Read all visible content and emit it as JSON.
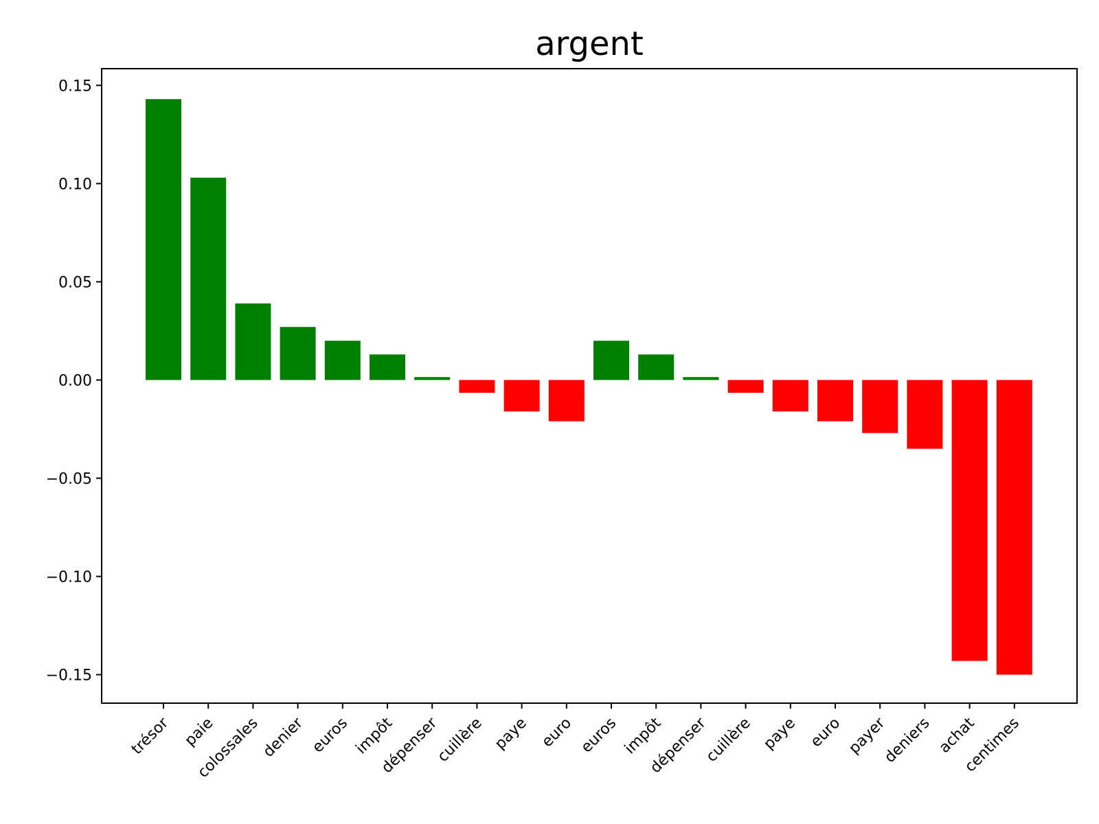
{
  "chart_data": {
    "type": "bar",
    "title": "argent",
    "xlabel": "",
    "ylabel": "",
    "categories": [
      "trésor",
      "paie",
      "colossales",
      "denier",
      "euros",
      "impôt",
      "dépenser",
      "cuillère",
      "paye",
      "euro",
      "euros",
      "impôt",
      "dépenser",
      "cuillère",
      "paye",
      "euro",
      "payer",
      "deniers",
      "achat",
      "centimes"
    ],
    "values": [
      0.143,
      0.103,
      0.039,
      0.027,
      0.02,
      0.013,
      0.0015,
      -0.0065,
      -0.016,
      -0.021,
      0.02,
      0.013,
      0.0015,
      -0.0065,
      -0.016,
      -0.021,
      -0.027,
      -0.035,
      -0.143,
      -0.15
    ],
    "ylim": [
      -0.1645,
      0.1585
    ],
    "yticks": [
      0.15,
      0.1,
      0.05,
      0.0,
      -0.05,
      -0.1,
      -0.15
    ],
    "ytick_labels": [
      "0.15",
      "0.10",
      "0.05",
      "0.00",
      "−0.05",
      "−0.10",
      "−0.15"
    ],
    "positive_color": "#008000",
    "negative_color": "#ff0000",
    "grid": false,
    "legend": "none"
  }
}
